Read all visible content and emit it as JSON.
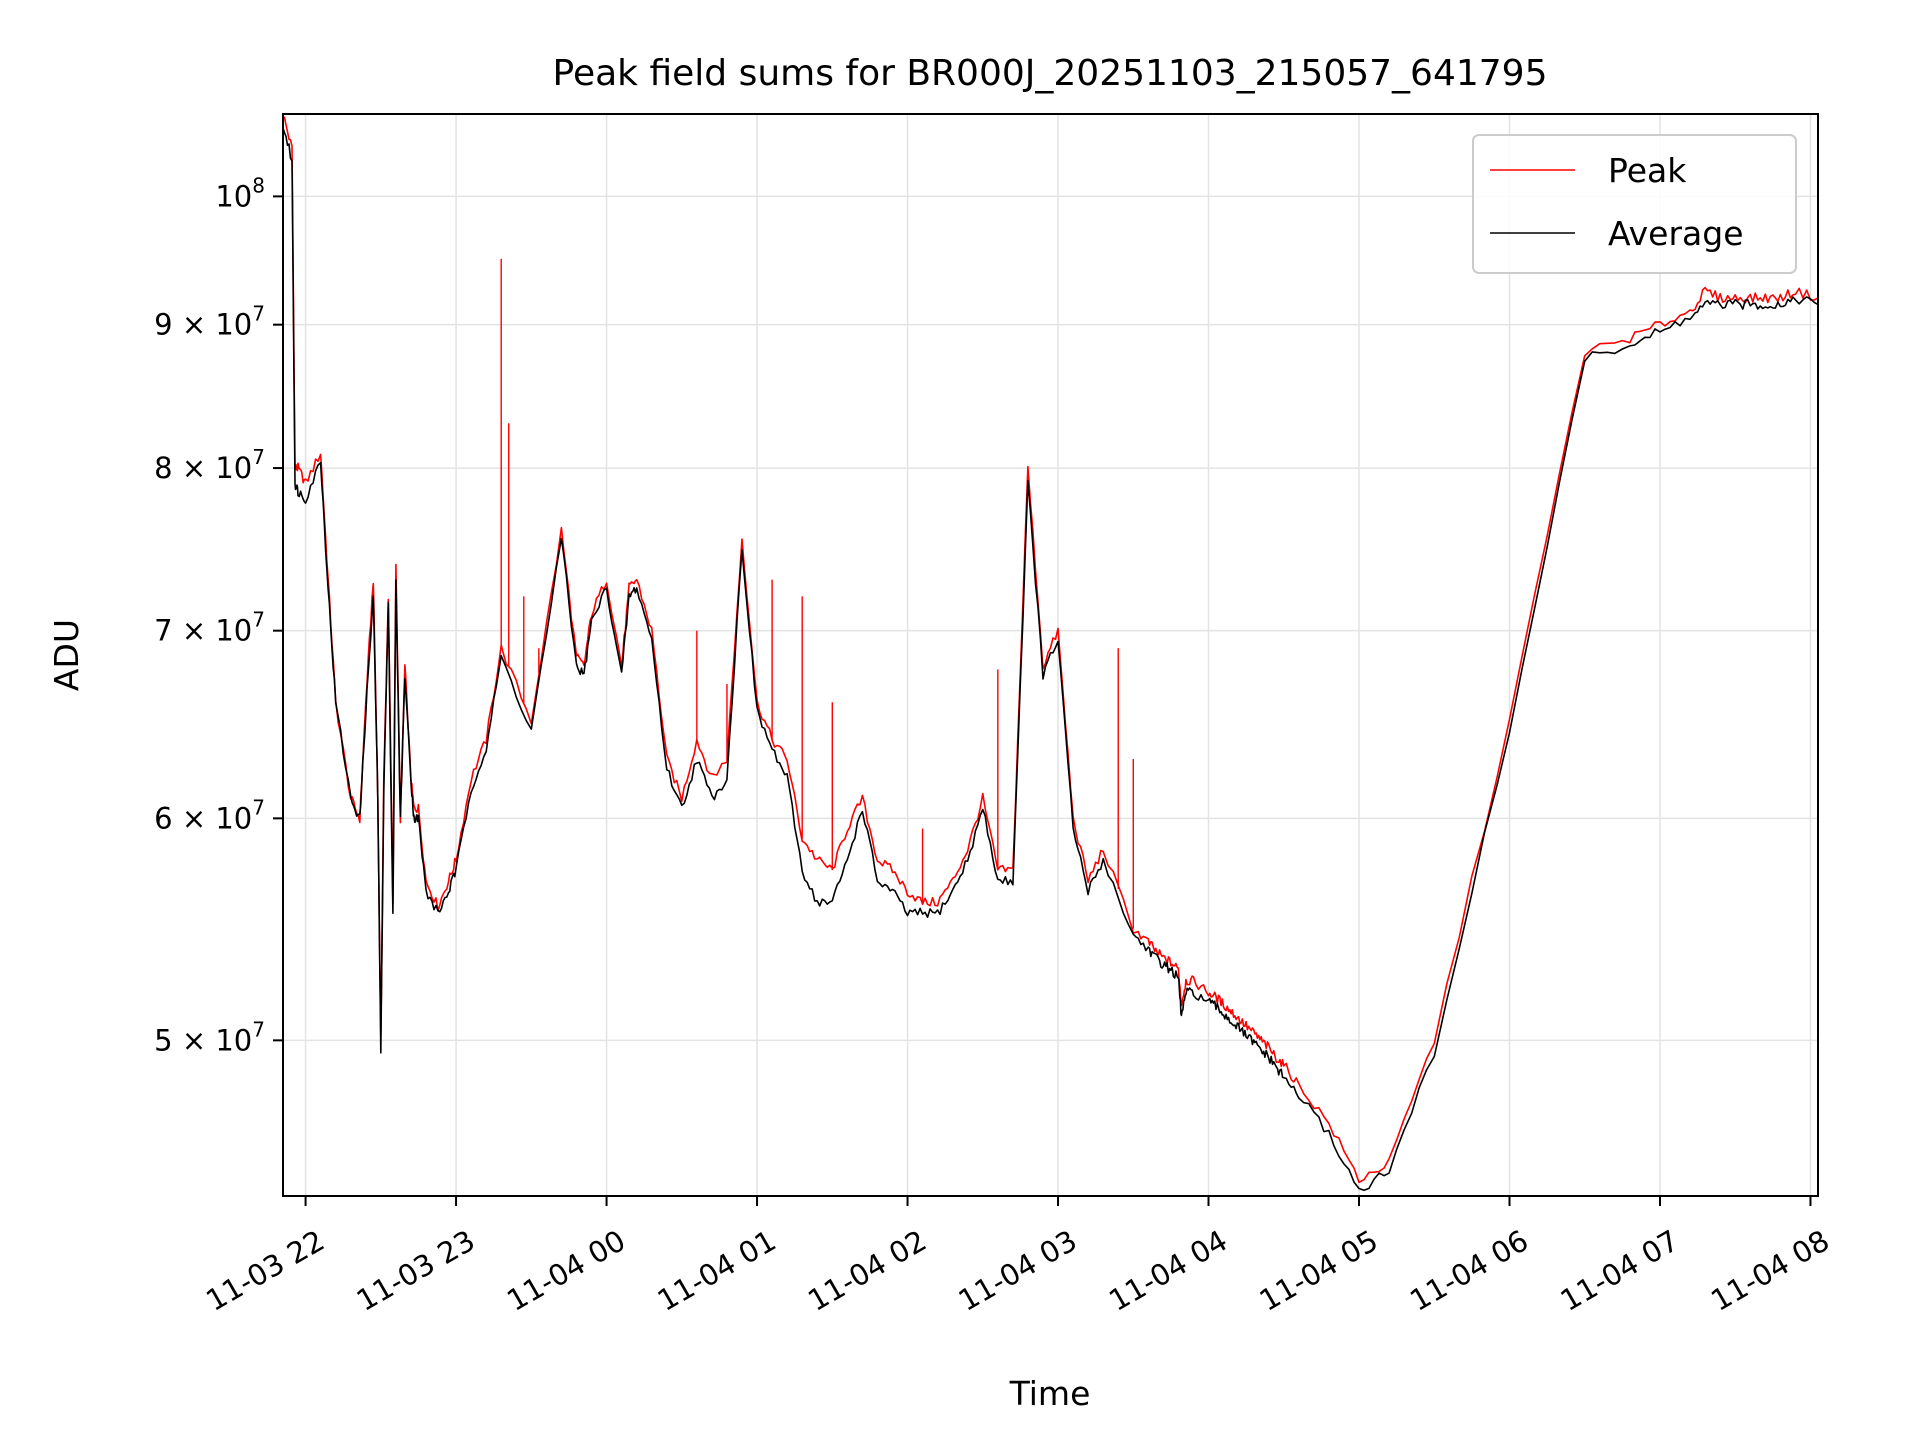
{
  "chart_data": {
    "type": "line",
    "title": "Peak field sums for BR000J_20251103_215057_641795",
    "xlabel": "Time",
    "ylabel": "ADU",
    "yscale": "log",
    "ylim": [
      44000000,
      107000000
    ],
    "xlim_hours": [
      -0.15,
      10.05
    ],
    "x_unit": "hours after 2025-11-03 22:00",
    "x_tick_values": [
      0,
      1,
      2,
      3,
      4,
      5,
      6,
      7,
      8,
      9,
      10
    ],
    "x_tick_labels": [
      "11-03 22",
      "11-03 23",
      "11-04 00",
      "11-04 01",
      "11-04 02",
      "11-04 03",
      "11-04 04",
      "11-04 05",
      "11-04 06",
      "11-04 07",
      "11-04 08"
    ],
    "y_ticks": [
      {
        "value": 100000000,
        "mantissa": "",
        "base": "10",
        "exp": "8"
      },
      {
        "value": 90000000,
        "mantissa": "9 × ",
        "base": "10",
        "exp": "7"
      },
      {
        "value": 80000000,
        "mantissa": "8 × ",
        "base": "10",
        "exp": "7"
      },
      {
        "value": 70000000,
        "mantissa": "7 × ",
        "base": "10",
        "exp": "7"
      },
      {
        "value": 60000000,
        "mantissa": "6 × ",
        "base": "10",
        "exp": "7"
      },
      {
        "value": 50000000,
        "mantissa": "5 × ",
        "base": "10",
        "exp": "7"
      }
    ],
    "grid": true,
    "legend_position": "upper right",
    "series": [
      {
        "name": "Peak",
        "color": "#ff0000",
        "x": [
          -0.15,
          -0.09,
          -0.07,
          -0.05,
          0.0,
          0.1,
          0.15,
          0.2,
          0.3,
          0.36,
          0.4,
          0.45,
          0.48,
          0.5,
          0.52,
          0.55,
          0.58,
          0.6,
          0.63,
          0.66,
          0.7,
          0.72,
          0.75,
          0.8,
          0.88,
          0.95,
          1.0,
          1.1,
          1.2,
          1.3,
          1.5,
          1.7,
          1.8,
          1.85,
          1.9,
          2.0,
          2.1,
          2.15,
          2.2,
          2.3,
          2.4,
          2.5,
          2.6,
          2.7,
          2.8,
          2.9,
          3.0,
          3.1,
          3.2,
          3.3,
          3.4,
          3.5,
          3.6,
          3.7,
          3.8,
          3.9,
          4.0,
          4.1,
          4.2,
          4.3,
          4.4,
          4.5,
          4.6,
          4.7,
          4.8,
          4.9,
          5.0,
          5.1,
          5.2,
          5.3,
          5.5,
          5.6,
          5.65,
          5.7,
          5.75,
          5.8,
          5.82,
          5.85,
          5.9,
          6.0,
          6.05,
          6.1,
          6.15,
          6.2,
          6.25,
          6.3,
          6.35,
          6.4,
          6.45,
          6.5,
          6.6,
          6.8,
          7.0,
          7.2,
          7.5,
          8.0,
          8.5,
          8.8,
          9.0,
          9.2,
          9.3,
          9.4,
          9.5,
          9.6,
          9.7,
          9.8,
          9.9,
          10.05
        ],
        "y": [
          107000000,
          104000000,
          80000000,
          80000000,
          79000000,
          81000000,
          73000000,
          66000000,
          61000000,
          60000000,
          66000000,
          73000000,
          61000000,
          50000000,
          62000000,
          72000000,
          56000000,
          74000000,
          60000000,
          68000000,
          62000000,
          60500000,
          60500000,
          57000000,
          55800000,
          57000000,
          58000000,
          62000000,
          64000000,
          69000000,
          65000000,
          76000000,
          68500000,
          68000000,
          71000000,
          73000000,
          68000000,
          72500000,
          73000000,
          70000000,
          63000000,
          61000000,
          64000000,
          62000000,
          63000000,
          75500000,
          66000000,
          64000000,
          63000000,
          59000000,
          58000000,
          57500000,
          59500000,
          61000000,
          58000000,
          57500000,
          56500000,
          56000000,
          56000000,
          57000000,
          58500000,
          61000000,
          57500000,
          57500000,
          80000000,
          68000000,
          70000000,
          60000000,
          57000000,
          58500000,
          54800000,
          54200000,
          53800000,
          53500000,
          53300000,
          53000000,
          51500000,
          52500000,
          52500000,
          52000000,
          51800000,
          51500000,
          51200000,
          50900000,
          50600000,
          50300000,
          50000000,
          49700000,
          49300000,
          49000000,
          48200000,
          46700000,
          44600000,
          45200000,
          50000000,
          65000000,
          88000000,
          89000000,
          90000000,
          91000000,
          92500000,
          92000000,
          92000000,
          92000000,
          92000000,
          92000000,
          92500000,
          92000000
        ],
        "spikes": [
          [
            1.2,
            64000000
          ],
          [
            1.3,
            95000000
          ],
          [
            1.35,
            83000000
          ],
          [
            1.45,
            72000000
          ],
          [
            1.55,
            69000000
          ],
          [
            2.6,
            70000000
          ],
          [
            2.8,
            67000000
          ],
          [
            3.1,
            73000000
          ],
          [
            3.3,
            72000000
          ],
          [
            3.5,
            66000000
          ],
          [
            4.1,
            59500000
          ],
          [
            4.6,
            67800000
          ],
          [
            5.4,
            69000000
          ],
          [
            5.5,
            63000000
          ]
        ]
      },
      {
        "name": "Average",
        "color": "#000000",
        "x": [
          -0.15,
          -0.09,
          -0.07,
          -0.05,
          0.0,
          0.1,
          0.15,
          0.2,
          0.3,
          0.36,
          0.4,
          0.45,
          0.48,
          0.5,
          0.52,
          0.55,
          0.58,
          0.6,
          0.63,
          0.66,
          0.7,
          0.72,
          0.75,
          0.8,
          0.88,
          0.95,
          1.0,
          1.1,
          1.2,
          1.3,
          1.5,
          1.7,
          1.8,
          1.85,
          1.9,
          2.0,
          2.1,
          2.15,
          2.2,
          2.3,
          2.4,
          2.5,
          2.6,
          2.7,
          2.8,
          2.9,
          3.0,
          3.1,
          3.2,
          3.3,
          3.4,
          3.5,
          3.6,
          3.7,
          3.8,
          3.9,
          4.0,
          4.1,
          4.2,
          4.3,
          4.4,
          4.5,
          4.6,
          4.7,
          4.8,
          4.9,
          5.0,
          5.1,
          5.2,
          5.3,
          5.5,
          5.6,
          5.65,
          5.7,
          5.75,
          5.8,
          5.82,
          5.85,
          5.9,
          6.0,
          6.05,
          6.1,
          6.15,
          6.2,
          6.25,
          6.3,
          6.35,
          6.4,
          6.45,
          6.5,
          6.6,
          6.8,
          7.0,
          7.2,
          7.5,
          8.0,
          8.5,
          8.8,
          9.0,
          9.2,
          9.3,
          9.4,
          9.5,
          9.6,
          9.7,
          9.8,
          9.9,
          10.05
        ],
        "y": [
          106000000,
          103000000,
          79000000,
          78500000,
          78000000,
          80500000,
          72500000,
          66000000,
          61000000,
          60000000,
          65500000,
          72000000,
          61000000,
          49500000,
          61500000,
          71500000,
          55500000,
          73000000,
          60000000,
          67500000,
          62000000,
          60000000,
          60000000,
          56500000,
          55500000,
          56500000,
          57500000,
          61500000,
          63500000,
          68500000,
          64500000,
          75500000,
          68000000,
          67500000,
          70500000,
          72500000,
          67500000,
          72000000,
          72500000,
          69500000,
          62500000,
          60500000,
          63000000,
          61000000,
          62000000,
          75000000,
          65500000,
          63500000,
          62000000,
          57500000,
          56000000,
          56000000,
          58000000,
          60500000,
          57000000,
          56500000,
          55500000,
          55500000,
          55500000,
          56500000,
          58000000,
          60500000,
          57000000,
          57000000,
          79000000,
          67500000,
          69500000,
          59500000,
          56500000,
          58000000,
          54500000,
          53900000,
          53500000,
          53200000,
          53000000,
          52600000,
          51000000,
          52000000,
          52000000,
          51600000,
          51400000,
          51100000,
          50800000,
          50500000,
          50200000,
          49900000,
          49600000,
          49300000,
          48900000,
          48500000,
          47800000,
          46300000,
          44200000,
          44900000,
          49500000,
          64500000,
          87500000,
          88500000,
          89500000,
          90500000,
          91500000,
          91500000,
          91500000,
          91500000,
          91500000,
          91500000,
          92000000,
          91500000
        ]
      }
    ]
  }
}
